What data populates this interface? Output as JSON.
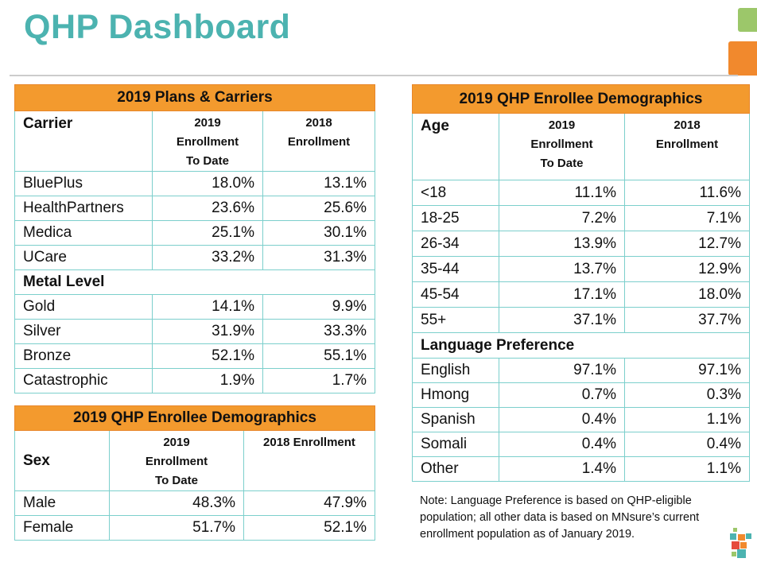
{
  "title": "QHP Dashboard",
  "plans": {
    "heading": "2019 Plans & Carriers",
    "col0": "Carrier",
    "col1": [
      "2019",
      "Enrollment",
      "To Date"
    ],
    "col2": [
      "2018",
      "Enrollment"
    ],
    "carriers": [
      [
        "BluePlus",
        "18.0%",
        "13.1%"
      ],
      [
        "HealthPartners",
        "23.6%",
        "25.6%"
      ],
      [
        "Medica",
        "25.1%",
        "30.1%"
      ],
      [
        "UCare",
        "33.2%",
        "31.3%"
      ]
    ],
    "metal_heading": "Metal Level",
    "metals": [
      [
        "Gold",
        "14.1%",
        "9.9%"
      ],
      [
        "Silver",
        "31.9%",
        "33.3%"
      ],
      [
        "Bronze",
        "52.1%",
        "55.1%"
      ],
      [
        "Catastrophic",
        "1.9%",
        "1.7%"
      ]
    ]
  },
  "sex": {
    "heading": "2019 QHP Enrollee Demographics",
    "col0": "Sex",
    "col1": [
      "2019",
      "Enrollment",
      "To Date"
    ],
    "col2": "2018 Enrollment",
    "rows": [
      [
        "Male",
        "48.3%",
        "47.9%"
      ],
      [
        "Female",
        "51.7%",
        "52.1%"
      ]
    ]
  },
  "demo": {
    "heading": "2019 QHP Enrollee Demographics",
    "col0": "Age",
    "col1": [
      "2019",
      "Enrollment",
      "To Date"
    ],
    "col2": [
      "2018",
      "Enrollment"
    ],
    "ages": [
      [
        "<18",
        "11.1%",
        "11.6%"
      ],
      [
        "18-25",
        "7.2%",
        "7.1%"
      ],
      [
        "26-34",
        "13.9%",
        "12.7%"
      ],
      [
        "35-44",
        "13.7%",
        "12.9%"
      ],
      [
        "45-54",
        "17.1%",
        "18.0%"
      ],
      [
        "55+",
        "37.1%",
        "37.7%"
      ]
    ],
    "lang_heading": "Language Preference",
    "langs": [
      [
        "English",
        "97.1%",
        "97.1%"
      ],
      [
        "Hmong",
        "0.7%",
        "0.3%"
      ],
      [
        "Spanish",
        "0.4%",
        "1.1%"
      ],
      [
        "Somali",
        "0.4%",
        "0.4%"
      ],
      [
        "Other",
        "1.4%",
        "1.1%"
      ]
    ]
  },
  "note": "Note:  Language Preference is based on QHP-eligible population; all other data is based on MNsure’s current enrollment population as of January 2019.",
  "colors": {
    "title": "#4cb3b0",
    "header": "#f39a2e",
    "border": "#7ccfcc"
  }
}
